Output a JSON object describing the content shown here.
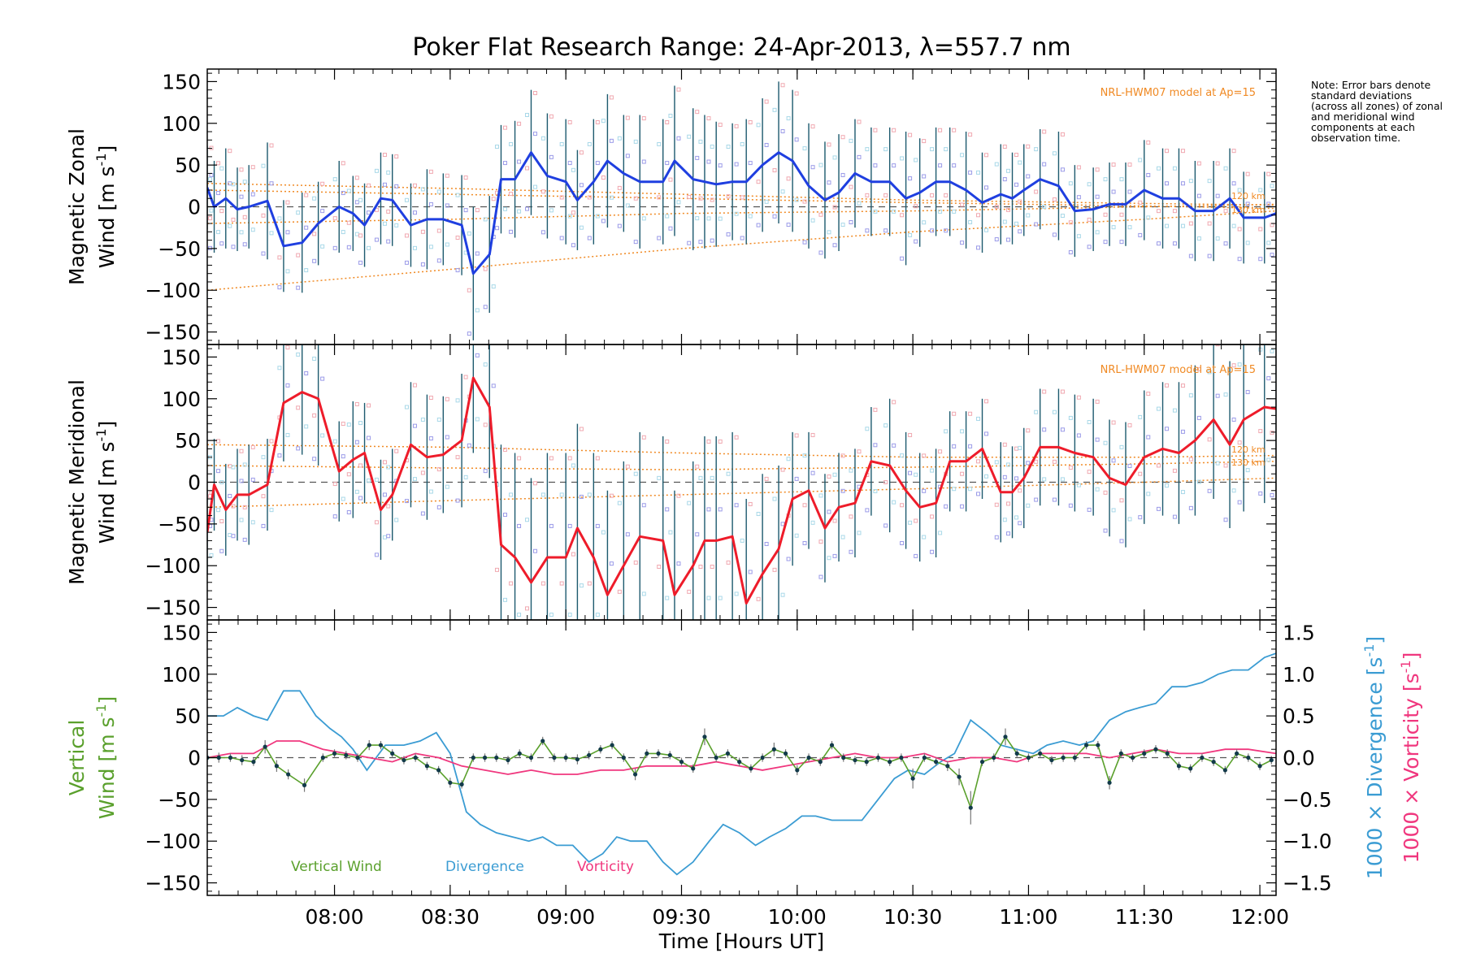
{
  "chart_data": {
    "type": "line",
    "title": "Poker Flat Research Range: 24-Apr-2013, λ=557.7 nm",
    "note": "Note: Error bars denote standard deviations (across all zones) of zonal and meridional wind components at each observation time.",
    "xlabel": "Time [Hours UT]",
    "xlim": [
      7.45,
      12.07
    ],
    "xticks": [
      {
        "value": 8.0,
        "label": "08:00"
      },
      {
        "value": 8.5,
        "label": "08:30"
      },
      {
        "value": 9.0,
        "label": "09:00"
      },
      {
        "value": 9.5,
        "label": "09:30"
      },
      {
        "value": 10.0,
        "label": "10:00"
      },
      {
        "value": 10.5,
        "label": "10:30"
      },
      {
        "value": 11.0,
        "label": "11:00"
      },
      {
        "value": 11.5,
        "label": "11:30"
      },
      {
        "value": 12.0,
        "label": "12:00"
      }
    ],
    "panels": [
      {
        "id": "zonal",
        "ylabel_line1": "Magnetic Zonal",
        "ylabel_line2": "Wind [m s",
        "ylabel_sup": "-1",
        "ylabel_close": "]",
        "ylim": [
          -165,
          165
        ],
        "yticks": [
          -150,
          -100,
          -50,
          0,
          50,
          100,
          150
        ],
        "model_label": "NRL-HWM07 model at Ap=15",
        "model_heights": [
          "120 km",
          "130 km"
        ],
        "series": {
          "name": "Zonal wind",
          "color": "#1f3fe0",
          "x": [
            7.45,
            7.48,
            7.53,
            7.58,
            7.63,
            7.71,
            7.78,
            7.86,
            7.93,
            8.02,
            8.08,
            8.13,
            8.2,
            8.25,
            8.33,
            8.4,
            8.47,
            8.55,
            8.6,
            8.67,
            8.72,
            8.78,
            8.85,
            8.92,
            9.0,
            9.05,
            9.12,
            9.18,
            9.25,
            9.32,
            9.42,
            9.47,
            9.55,
            9.6,
            9.65,
            9.72,
            9.78,
            9.85,
            9.92,
            9.98,
            10.05,
            10.12,
            10.18,
            10.25,
            10.32,
            10.4,
            10.47,
            10.53,
            10.6,
            10.66,
            10.73,
            10.8,
            10.88,
            10.93,
            10.98,
            11.05,
            11.13,
            11.2,
            11.28,
            11.35,
            11.42,
            11.5,
            11.58,
            11.65,
            11.72,
            11.8,
            11.87,
            11.93,
            12.02,
            12.07
          ],
          "y": [
            23,
            0,
            10,
            -3,
            0,
            7,
            -47,
            -43,
            -20,
            0,
            -8,
            -22,
            10,
            8,
            -22,
            -15,
            -15,
            -22,
            -80,
            -57,
            33,
            33,
            65,
            37,
            30,
            8,
            30,
            55,
            40,
            30,
            30,
            55,
            33,
            30,
            27,
            30,
            30,
            50,
            65,
            55,
            25,
            8,
            17,
            40,
            30,
            30,
            10,
            17,
            30,
            30,
            20,
            5,
            15,
            10,
            20,
            33,
            25,
            -5,
            -3,
            3,
            3,
            20,
            10,
            10,
            -5,
            -5,
            10,
            -13,
            -13,
            -8
          ],
          "err": [
            50,
            55,
            60,
            50,
            50,
            70,
            55,
            60,
            50,
            55,
            45,
            50,
            55,
            55,
            50,
            60,
            55,
            60,
            80,
            70,
            65,
            70,
            75,
            75,
            75,
            60,
            75,
            80,
            70,
            80,
            75,
            90,
            85,
            80,
            75,
            70,
            75,
            80,
            85,
            85,
            75,
            70,
            70,
            65,
            65,
            65,
            80,
            65,
            65,
            65,
            70,
            60,
            60,
            55,
            55,
            60,
            65,
            55,
            50,
            50,
            50,
            60,
            60,
            60,
            60,
            60,
            60,
            55,
            55,
            55
          ]
        },
        "zero_line": 0
      },
      {
        "id": "meridional",
        "ylabel_line1": "Magnetic Meridional",
        "ylabel_line2": "Wind [m s",
        "ylabel_sup": "-1",
        "ylabel_close": "]",
        "ylim": [
          -165,
          165
        ],
        "yticks": [
          -150,
          -100,
          -50,
          0,
          50,
          100,
          150
        ],
        "model_label": "NRL-HWM07 model at Ap=15",
        "model_heights": [
          "120 km",
          "130 km"
        ],
        "series": {
          "name": "Meridional wind",
          "color": "#ee1c2a",
          "x": [
            7.45,
            7.48,
            7.53,
            7.58,
            7.63,
            7.71,
            7.78,
            7.86,
            7.93,
            8.02,
            8.08,
            8.13,
            8.2,
            8.25,
            8.33,
            8.4,
            8.47,
            8.55,
            8.6,
            8.67,
            8.72,
            8.78,
            8.85,
            8.92,
            9.0,
            9.05,
            9.12,
            9.18,
            9.25,
            9.32,
            9.42,
            9.47,
            9.55,
            9.6,
            9.65,
            9.72,
            9.78,
            9.85,
            9.92,
            9.98,
            10.05,
            10.12,
            10.18,
            10.25,
            10.32,
            10.4,
            10.47,
            10.53,
            10.6,
            10.66,
            10.73,
            10.8,
            10.88,
            10.93,
            10.98,
            11.05,
            11.13,
            11.2,
            11.28,
            11.35,
            11.42,
            11.5,
            11.58,
            11.65,
            11.72,
            11.8,
            11.87,
            11.93,
            12.02,
            12.07
          ],
          "y": [
            -60,
            -3,
            -33,
            -15,
            -15,
            -3,
            95,
            108,
            100,
            13,
            27,
            35,
            -33,
            -15,
            45,
            30,
            33,
            50,
            125,
            90,
            -75,
            -90,
            -120,
            -90,
            -90,
            -55,
            -90,
            -135,
            -100,
            -65,
            -70,
            -135,
            -100,
            -70,
            -70,
            -65,
            -145,
            -110,
            -80,
            -20,
            -10,
            -55,
            -30,
            -25,
            25,
            20,
            -10,
            -30,
            -25,
            25,
            25,
            40,
            -12,
            -12,
            5,
            42,
            42,
            35,
            30,
            5,
            -3,
            30,
            40,
            35,
            50,
            75,
            45,
            75,
            90,
            88
          ],
          "err": [
            50,
            55,
            55,
            55,
            60,
            55,
            70,
            75,
            80,
            60,
            70,
            60,
            60,
            55,
            75,
            75,
            70,
            80,
            90,
            85,
            120,
            125,
            125,
            125,
            125,
            125,
            125,
            125,
            125,
            125,
            125,
            125,
            125,
            125,
            125,
            125,
            125,
            120,
            100,
            80,
            70,
            65,
            65,
            65,
            65,
            80,
            70,
            65,
            65,
            60,
            60,
            60,
            60,
            55,
            60,
            70,
            70,
            70,
            70,
            70,
            75,
            80,
            80,
            85,
            90,
            95,
            100,
            110,
            115,
            115
          ]
        },
        "zero_line": 0
      },
      {
        "id": "vertical",
        "ylabel_line1": "Vertical",
        "ylabel_line2": "Wind [m s",
        "ylabel_sup": "-1",
        "ylabel_close": "]",
        "ylim": [
          -165,
          165
        ],
        "yticks": [
          -150,
          -100,
          -50,
          0,
          50,
          100,
          150
        ],
        "right_axis": {
          "ylim": [
            -1.65,
            1.65
          ],
          "yticks": [
            -1.5,
            -1.0,
            -0.5,
            0.0,
            0.5,
            1.0,
            1.5
          ],
          "yticklabels": [
            "−1.5",
            "−1.0",
            "−0.5",
            "0.0",
            "0.5",
            "1.0",
            "1.5"
          ],
          "label_div": "1000 × Divergence [s",
          "label_vort": "1000 × Vorticity [s",
          "label_sup": "-1",
          "label_close": "]"
        },
        "legend": [
          {
            "name": "Vertical Wind",
            "color": "#5aa02c"
          },
          {
            "name": "Divergence",
            "color": "#3b9cd3"
          },
          {
            "name": "Vorticity",
            "color": "#f0377e"
          }
        ],
        "vertical_wind": {
          "color": "#5aa02c",
          "x": [
            7.45,
            7.5,
            7.55,
            7.6,
            7.65,
            7.7,
            7.75,
            7.8,
            7.87,
            7.95,
            8.0,
            8.05,
            8.1,
            8.15,
            8.2,
            8.25,
            8.3,
            8.35,
            8.4,
            8.45,
            8.5,
            8.55,
            8.6,
            8.65,
            8.7,
            8.75,
            8.8,
            8.85,
            8.9,
            8.95,
            9.0,
            9.05,
            9.1,
            9.15,
            9.2,
            9.25,
            9.3,
            9.35,
            9.4,
            9.45,
            9.5,
            9.55,
            9.6,
            9.65,
            9.7,
            9.75,
            9.8,
            9.85,
            9.9,
            9.95,
            10.0,
            10.05,
            10.1,
            10.15,
            10.2,
            10.25,
            10.3,
            10.35,
            10.4,
            10.45,
            10.5,
            10.55,
            10.6,
            10.65,
            10.7,
            10.75,
            10.8,
            10.85,
            10.9,
            10.95,
            11.0,
            11.05,
            11.1,
            11.15,
            11.2,
            11.25,
            11.3,
            11.35,
            11.4,
            11.45,
            11.5,
            11.55,
            11.6,
            11.65,
            11.7,
            11.75,
            11.8,
            11.85,
            11.9,
            11.95,
            12.0,
            12.05
          ],
          "y": [
            0,
            0,
            0,
            -3,
            -5,
            13,
            -10,
            -20,
            -33,
            0,
            5,
            3,
            0,
            15,
            15,
            5,
            -3,
            0,
            -10,
            -15,
            -30,
            -32,
            0,
            0,
            0,
            -3,
            5,
            0,
            20,
            0,
            0,
            -2,
            3,
            10,
            15,
            0,
            -20,
            5,
            5,
            3,
            -5,
            -13,
            25,
            0,
            5,
            -5,
            -13,
            0,
            10,
            5,
            -15,
            0,
            -5,
            15,
            0,
            -3,
            -5,
            0,
            -5,
            0,
            -25,
            0,
            -5,
            -10,
            -23,
            -60,
            -5,
            0,
            25,
            5,
            0,
            5,
            -3,
            0,
            0,
            15,
            15,
            -30,
            5,
            0,
            5,
            10,
            5,
            -10,
            -13,
            0,
            -5,
            -15,
            5,
            0,
            -10,
            -3
          ],
          "err": [
            5,
            6,
            5,
            6,
            5,
            8,
            7,
            6,
            8,
            5,
            5,
            5,
            5,
            6,
            5,
            5,
            5,
            5,
            5,
            5,
            6,
            5,
            5,
            5,
            5,
            5,
            5,
            5,
            5,
            5,
            5,
            6,
            5,
            5,
            5,
            5,
            7,
            5,
            5,
            5,
            5,
            5,
            10,
            5,
            5,
            5,
            5,
            5,
            8,
            5,
            6,
            5,
            5,
            5,
            5,
            5,
            5,
            5,
            5,
            5,
            12,
            5,
            5,
            6,
            10,
            20,
            5,
            5,
            10,
            5,
            5,
            5,
            5,
            5,
            5,
            5,
            5,
            8,
            5,
            5,
            5,
            5,
            5,
            5,
            5,
            5,
            5,
            5,
            5,
            5,
            5,
            5
          ]
        },
        "divergence": {
          "color": "#3b9cd3",
          "x": [
            7.45,
            7.52,
            7.58,
            7.65,
            7.71,
            7.78,
            7.85,
            7.92,
            7.98,
            8.03,
            8.08,
            8.14,
            8.22,
            8.3,
            8.37,
            8.44,
            8.5,
            8.57,
            8.63,
            8.7,
            8.77,
            8.84,
            8.9,
            8.96,
            9.03,
            9.1,
            9.16,
            9.22,
            9.28,
            9.35,
            9.42,
            9.48,
            9.55,
            9.62,
            9.68,
            9.75,
            9.82,
            9.88,
            9.95,
            10.02,
            10.08,
            10.15,
            10.22,
            10.28,
            10.35,
            10.42,
            10.48,
            10.55,
            10.62,
            10.68,
            10.75,
            10.82,
            10.88,
            10.95,
            11.02,
            11.08,
            11.15,
            11.22,
            11.28,
            11.35,
            11.42,
            11.48,
            11.55,
            11.62,
            11.68,
            11.75,
            11.82,
            11.88,
            11.95,
            12.02,
            12.07
          ],
          "y": [
            0.5,
            0.5,
            0.6,
            0.5,
            0.45,
            0.8,
            0.8,
            0.5,
            0.35,
            0.25,
            0.1,
            -0.15,
            0.15,
            0.15,
            0.2,
            0.3,
            0.05,
            -0.65,
            -0.8,
            -0.9,
            -0.95,
            -1.0,
            -0.95,
            -1.05,
            -1.05,
            -1.25,
            -1.15,
            -0.95,
            -1.0,
            -1.0,
            -1.25,
            -1.4,
            -1.25,
            -1.0,
            -0.8,
            -0.9,
            -1.05,
            -0.95,
            -0.85,
            -0.7,
            -0.7,
            -0.75,
            -0.75,
            -0.75,
            -0.5,
            -0.25,
            -0.15,
            -0.2,
            -0.05,
            0.05,
            0.45,
            0.3,
            0.15,
            0.1,
            0.05,
            0.15,
            0.2,
            0.15,
            0.2,
            0.45,
            0.55,
            0.6,
            0.65,
            0.85,
            0.85,
            0.9,
            1.0,
            1.05,
            1.05,
            1.2,
            1.25
          ]
        },
        "vorticity": {
          "color": "#f0377e",
          "x": [
            7.45,
            7.55,
            7.65,
            7.75,
            7.85,
            7.95,
            8.05,
            8.15,
            8.25,
            8.35,
            8.45,
            8.55,
            8.65,
            8.75,
            8.85,
            8.95,
            9.05,
            9.15,
            9.25,
            9.35,
            9.45,
            9.55,
            9.65,
            9.75,
            9.85,
            9.95,
            10.05,
            10.15,
            10.25,
            10.35,
            10.45,
            10.55,
            10.65,
            10.75,
            10.85,
            10.95,
            11.05,
            11.15,
            11.25,
            11.35,
            11.45,
            11.55,
            11.65,
            11.75,
            11.85,
            11.95,
            12.07
          ],
          "y": [
            0.0,
            0.05,
            0.05,
            0.2,
            0.2,
            0.1,
            0.05,
            0.0,
            -0.05,
            0.05,
            0.0,
            -0.1,
            -0.15,
            -0.2,
            -0.15,
            -0.2,
            -0.2,
            -0.15,
            -0.15,
            -0.1,
            -0.1,
            -0.1,
            -0.05,
            -0.1,
            -0.15,
            -0.1,
            -0.05,
            0.0,
            0.05,
            0.0,
            0.0,
            0.05,
            -0.05,
            0.0,
            0.0,
            -0.05,
            0.05,
            0.05,
            0.05,
            0.0,
            0.05,
            0.1,
            0.05,
            0.05,
            0.1,
            0.1,
            0.05
          ]
        },
        "zero_line": 0
      }
    ]
  }
}
